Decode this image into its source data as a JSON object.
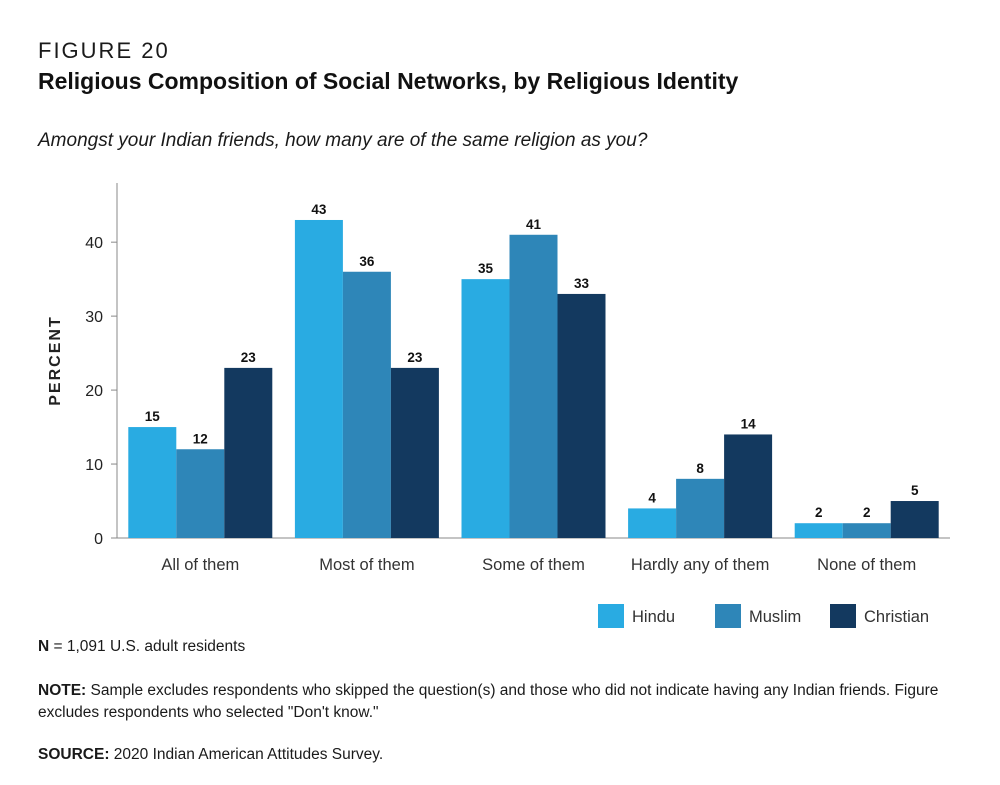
{
  "figure_label": "FIGURE 20",
  "title": "Religious Composition of Social Networks, by Religious Identity",
  "subtitle": "Amongst your Indian friends, how many are of the same religion as you?",
  "colors": {
    "Hindu": "#29abe2",
    "Muslim": "#2e86b8",
    "Christian": "#13395f"
  },
  "chart_data": {
    "type": "bar",
    "title": "Religious Composition of Social Networks, by Religious Identity",
    "xlabel": "",
    "ylabel": "PERCENT",
    "ylim": [
      0,
      48
    ],
    "yticks": [
      0,
      10,
      20,
      30,
      40
    ],
    "grid": false,
    "legend_position": "bottom-right",
    "categories": [
      "All of them",
      "Most of them",
      "Some of them",
      "Hardly any of them",
      "None of them"
    ],
    "series": [
      {
        "name": "Hindu",
        "values": [
          15,
          43,
          35,
          4,
          2
        ]
      },
      {
        "name": "Muslim",
        "values": [
          12,
          36,
          41,
          8,
          2
        ]
      },
      {
        "name": "Christian",
        "values": [
          23,
          23,
          33,
          14,
          5
        ]
      }
    ]
  },
  "notes": {
    "n_label": "N",
    "n_text": " = 1,091 U.S. adult residents",
    "note_label": "NOTE:",
    "note_text": " Sample excludes respondents who skipped the question(s) and those who did not indicate having any Indian friends. Figure excludes respondents who selected \"Don't know.\"",
    "source_label": "SOURCE:",
    "source_text": " 2020 Indian American Attitudes Survey."
  }
}
